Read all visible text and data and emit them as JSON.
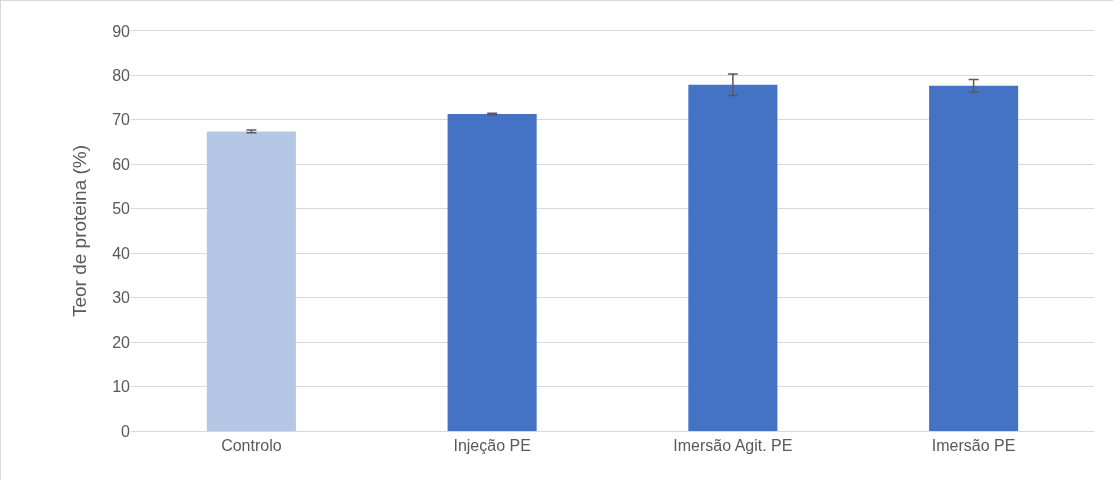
{
  "chart_data": {
    "type": "bar",
    "ylabel": "Teor de proteina (%)",
    "categories": [
      "Controlo",
      "Injeção PE",
      "Imersão Agit. PE",
      "Imersão PE"
    ],
    "values": [
      67.4,
      71.3,
      77.9,
      77.7
    ],
    "colors": [
      "#b4c7e7",
      "#4472c4",
      "#4472c4",
      "#4472c4"
    ],
    "errors": [
      0.3,
      0.2,
      2.4,
      1.4
    ],
    "ylim": [
      0,
      90
    ],
    "yticks": [
      0,
      10,
      20,
      30,
      40,
      50,
      60,
      70,
      80,
      90
    ],
    "grid": "y"
  }
}
